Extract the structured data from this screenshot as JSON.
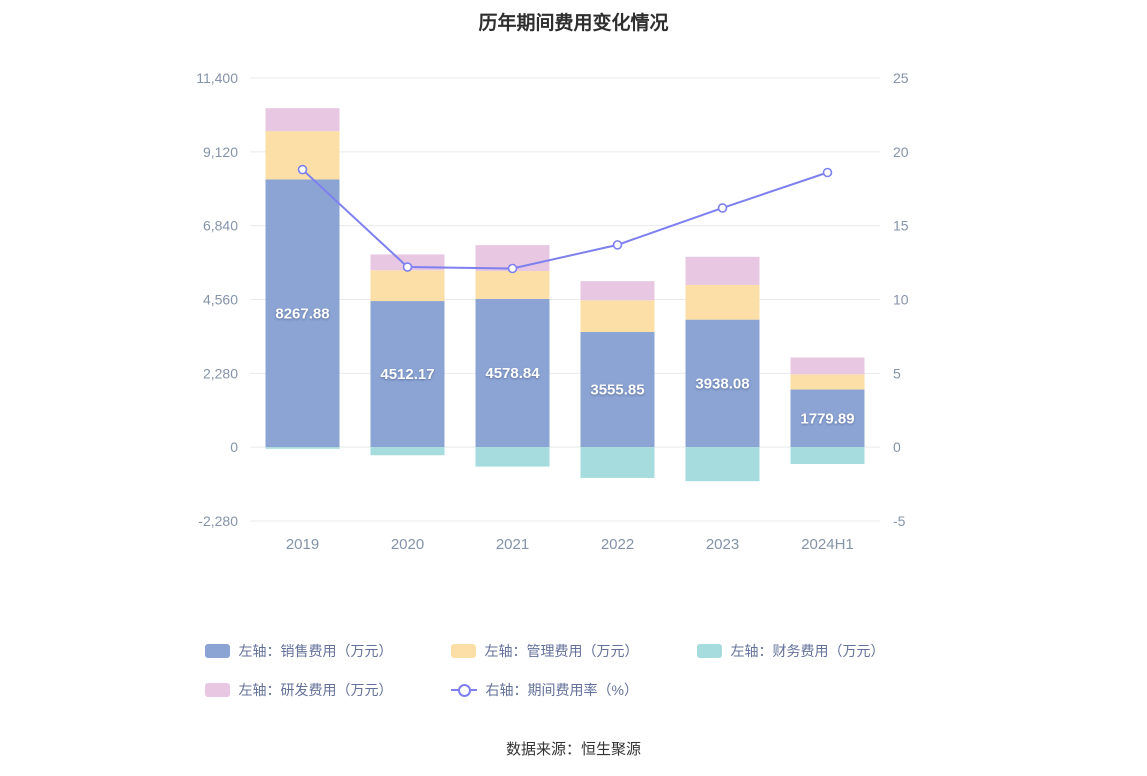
{
  "title": "历年期间费用变化情况",
  "source_note": "数据来源：恒生聚源",
  "colors": {
    "grid": "#e8eaee",
    "axis_text": "#8593a8",
    "legend_text": "#64719a",
    "bar_label": "#ffffff"
  },
  "chart_data": {
    "type": "bar-line-combo",
    "title": "历年期间费用变化情况",
    "categories": [
      "2019",
      "2020",
      "2021",
      "2022",
      "2023",
      "2024H1"
    ],
    "series": [
      {
        "name": "左轴：销售费用（万元）",
        "type": "bar",
        "color": "#8ca4d4",
        "values": [
          8267.88,
          4512.17,
          4578.84,
          3555.85,
          3938.08,
          1779.89
        ],
        "labels": [
          "8267.88",
          "4512.17",
          "4578.84",
          "3555.85",
          "3938.08",
          "1779.89"
        ]
      },
      {
        "name": "左轴：管理费用（万元）",
        "type": "bar",
        "color": "#fbdfa6",
        "values": [
          1490,
          950,
          860,
          980,
          1070,
          470
        ]
      },
      {
        "name": "左轴：财务费用（万元）",
        "type": "bar",
        "color": "#a6dcdd",
        "values": [
          -50,
          -250,
          -600,
          -950,
          -1050,
          -520
        ]
      },
      {
        "name": "左轴：研发费用（万元）",
        "type": "bar",
        "color": "#e8c7e2",
        "values": [
          710,
          490,
          800,
          590,
          870,
          520
        ]
      },
      {
        "name": "右轴：期间费用率（%）",
        "type": "line",
        "color": "#7d80ee",
        "values": [
          18.8,
          12.2,
          12.1,
          13.7,
          16.2,
          18.6
        ]
      }
    ],
    "left_axis": {
      "min": -2280,
      "max": 11400,
      "ticks": [
        -2280,
        0,
        2280,
        4560,
        6840,
        9120,
        11400
      ],
      "labels": [
        "-2,280",
        "0",
        "2,280",
        "4,560",
        "6,840",
        "9,120",
        "11,400"
      ]
    },
    "right_axis": {
      "min": -5,
      "max": 25,
      "ticks": [
        -5,
        0,
        5,
        10,
        15,
        20,
        25
      ],
      "labels": [
        "-5",
        "0",
        "5",
        "10",
        "15",
        "20",
        "25"
      ]
    },
    "grid": true,
    "legend_position": "bottom"
  }
}
